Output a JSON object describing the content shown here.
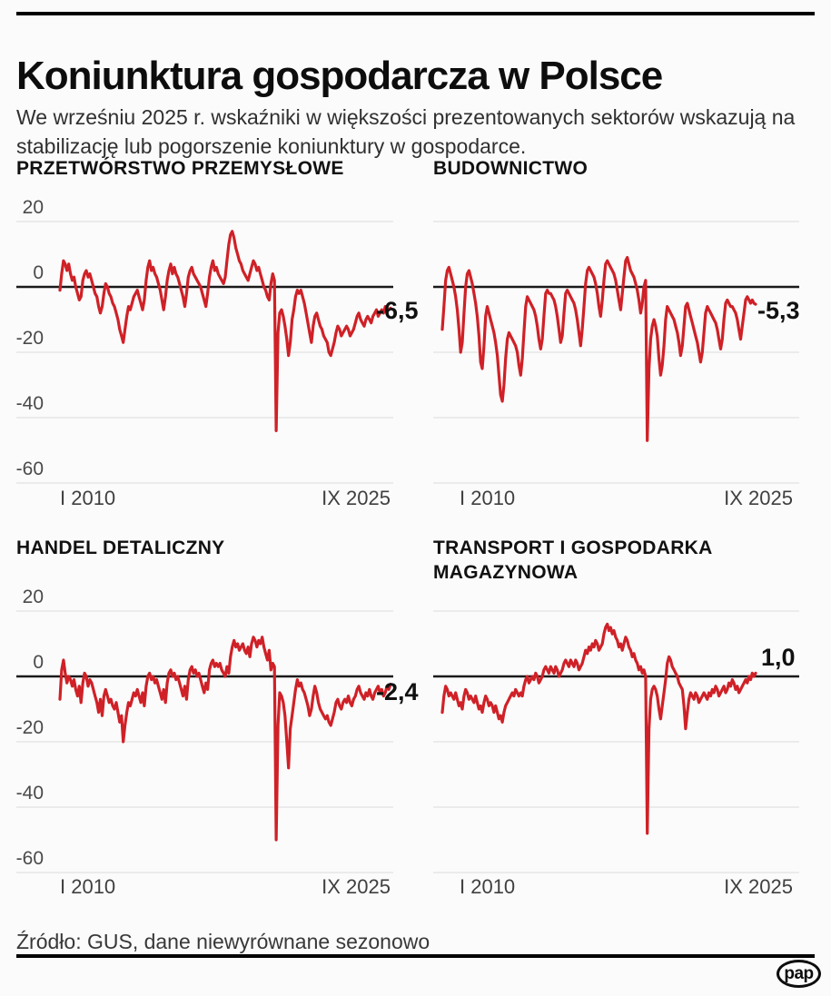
{
  "header": {
    "title": "Koniunktura gospodarcza w Polsce",
    "subtitle": "We wrześniu 2025 r. wskaźniki w większości prezentowanych sektorów wskazują na stabilizację lub pogorszenie koniunktury w gospodarce."
  },
  "footer": {
    "source": "Źródło: GUS, dane niewyrównane sezonowo",
    "logo_text": "pap"
  },
  "colors": {
    "line": "#cf2127",
    "zero_line": "#1a1a1a",
    "grid": "#e6e6e6",
    "background": "#fbfbfb",
    "axis_text": "#4a4a4a"
  },
  "chart_data": [
    {
      "type": "line",
      "title": "PRZETWÓRSTWO PRZEMYSŁOWE",
      "value_label": "-6,5",
      "last_value": -6.5,
      "x_start": "I 2010",
      "x_end": "IX 2025",
      "period": "monthly",
      "y_ticks": [
        20,
        0,
        -20,
        -40,
        -60
      ],
      "ylim": [
        -65,
        25
      ],
      "grid": true,
      "values": [
        -1,
        4,
        8,
        7,
        5,
        7,
        4,
        2,
        3,
        0,
        -2,
        -4,
        -3,
        2,
        4,
        5,
        3,
        4,
        2,
        0,
        -2,
        -3,
        -6,
        -8,
        -6,
        -2,
        1,
        0,
        -2,
        -3,
        -5,
        -6,
        -8,
        -10,
        -13,
        -15,
        -17,
        -13,
        -9,
        -6,
        -7,
        -5,
        -3,
        -2,
        -1,
        -3,
        -5,
        -7,
        -4,
        2,
        6,
        8,
        5,
        6,
        4,
        3,
        1,
        -1,
        -4,
        -7,
        -3,
        2,
        5,
        7,
        4,
        6,
        4,
        3,
        1,
        -1,
        -3,
        -6,
        -2,
        3,
        5,
        6,
        4,
        3,
        2,
        1,
        0,
        -2,
        -4,
        -6,
        -2,
        3,
        6,
        8,
        5,
        6,
        4,
        3,
        2,
        1,
        3,
        8,
        13,
        16,
        17,
        15,
        12,
        10,
        8,
        7,
        5,
        4,
        3,
        2,
        4,
        6,
        8,
        7,
        5,
        6,
        4,
        2,
        0,
        -1,
        -3,
        -4,
        1,
        4,
        2,
        -44,
        -14,
        -8,
        -7,
        -9,
        -12,
        -16,
        -21,
        -17,
        -10,
        -7,
        -3,
        -1,
        -2,
        -1,
        -3,
        -5,
        -8,
        -11,
        -14,
        -17,
        -12,
        -9,
        -8,
        -10,
        -12,
        -13,
        -15,
        -16,
        -17,
        -20,
        -21,
        -19,
        -17,
        -14,
        -12,
        -13,
        -15,
        -14,
        -13,
        -12,
        -13,
        -15,
        -14,
        -13,
        -11,
        -9,
        -8,
        -10,
        -11,
        -12,
        -10,
        -9,
        -10,
        -11,
        -9,
        -8,
        -7,
        -9,
        -8,
        -7,
        -8,
        -6,
        -7,
        -7,
        -6.5
      ]
    },
    {
      "type": "line",
      "title": "BUDOWNICTWO",
      "value_label": "-5,3",
      "last_value": -5.3,
      "x_start": "I 2010",
      "x_end": "IX 2025",
      "period": "monthly",
      "y_ticks": [
        20,
        0,
        -20,
        -40,
        -60
      ],
      "ylim": [
        -65,
        25
      ],
      "grid": true,
      "values": [
        -13,
        -6,
        2,
        5,
        6,
        4,
        2,
        0,
        -3,
        -7,
        -13,
        -20,
        -17,
        -8,
        0,
        4,
        5,
        3,
        1,
        -2,
        -5,
        -9,
        -15,
        -23,
        -25,
        -18,
        -9,
        -6,
        -8,
        -10,
        -12,
        -14,
        -17,
        -21,
        -27,
        -33,
        -35,
        -30,
        -22,
        -16,
        -14,
        -15,
        -16,
        -17,
        -18,
        -20,
        -24,
        -27,
        -22,
        -14,
        -6,
        -3,
        -4,
        -5,
        -6,
        -7,
        -9,
        -12,
        -16,
        -19,
        -16,
        -9,
        -2,
        -1,
        -2,
        -2,
        -3,
        -4,
        -6,
        -9,
        -13,
        -17,
        -15,
        -8,
        -2,
        -1,
        -2,
        -3,
        -4,
        -5,
        -7,
        -10,
        -14,
        -18,
        -13,
        -6,
        1,
        5,
        6,
        5,
        4,
        3,
        1,
        -2,
        -6,
        -9,
        -4,
        2,
        7,
        8,
        7,
        6,
        5,
        4,
        2,
        -1,
        -4,
        -7,
        -2,
        3,
        8,
        9,
        7,
        5,
        4,
        3,
        1,
        -1,
        -4,
        -8,
        -5,
        0,
        2,
        -47,
        -25,
        -16,
        -12,
        -10,
        -12,
        -15,
        -22,
        -27,
        -24,
        -18,
        -10,
        -6,
        -7,
        -8,
        -9,
        -10,
        -12,
        -14,
        -17,
        -21,
        -18,
        -12,
        -6,
        -5,
        -7,
        -9,
        -11,
        -13,
        -15,
        -17,
        -20,
        -23,
        -20,
        -14,
        -8,
        -6,
        -7,
        -8,
        -9,
        -10,
        -11,
        -13,
        -16,
        -19,
        -16,
        -10,
        -5,
        -4,
        -5,
        -6,
        -6,
        -7,
        -8,
        -10,
        -13,
        -16,
        -12,
        -8,
        -4,
        -3,
        -4,
        -5,
        -4,
        -5,
        -5.3
      ]
    },
    {
      "type": "line",
      "title": "HANDEL DETALICZNY",
      "value_label": "-2,4",
      "last_value": -2.4,
      "x_start": "I 2010",
      "x_end": "IX 2025",
      "period": "monthly",
      "y_ticks": [
        20,
        0,
        -20,
        -40,
        -60
      ],
      "ylim": [
        -65,
        25
      ],
      "grid": true,
      "values": [
        -7,
        2,
        5,
        1,
        -2,
        0,
        -1,
        -3,
        -1,
        -4,
        -6,
        -3,
        -8,
        -2,
        1,
        0,
        -3,
        -1,
        -2,
        -4,
        -6,
        -8,
        -11,
        -7,
        -12,
        -6,
        -4,
        -6,
        -8,
        -7,
        -9,
        -10,
        -8,
        -11,
        -14,
        -12,
        -20,
        -15,
        -11,
        -8,
        -9,
        -7,
        -5,
        -6,
        -4,
        -6,
        -8,
        -5,
        -9,
        -3,
        0,
        1,
        -1,
        0,
        -2,
        -1,
        -3,
        -5,
        -7,
        -4,
        -8,
        -2,
        1,
        2,
        0,
        1,
        -1,
        0,
        -2,
        -4,
        -6,
        -3,
        -7,
        -1,
        2,
        3,
        1,
        2,
        0,
        1,
        -1,
        -3,
        -5,
        -2,
        -4,
        2,
        4,
        5,
        3,
        4,
        3,
        4,
        2,
        1,
        0,
        3,
        1,
        6,
        9,
        11,
        9,
        10,
        8,
        9,
        10,
        8,
        7,
        9,
        6,
        10,
        12,
        11,
        9,
        11,
        10,
        12,
        9,
        7,
        5,
        8,
        2,
        4,
        3,
        -50,
        -15,
        -5,
        -6,
        -8,
        -12,
        -20,
        -28,
        -16,
        -12,
        -8,
        -4,
        -1,
        -3,
        -2,
        -4,
        -5,
        -7,
        -9,
        -12,
        -10,
        -6,
        -3,
        -5,
        -8,
        -10,
        -11,
        -12,
        -13,
        -12,
        -14,
        -15,
        -13,
        -11,
        -8,
        -7,
        -9,
        -10,
        -8,
        -7,
        -8,
        -6,
        -8,
        -9,
        -7,
        -6,
        -4,
        -3,
        -5,
        -6,
        -7,
        -5,
        -6,
        -4,
        -6,
        -7,
        -5,
        -4,
        -3,
        -5,
        -4,
        -6,
        -5,
        -3,
        -4,
        -2.4
      ]
    },
    {
      "type": "line",
      "title": "TRANSPORT I GOSPODARKA MAGAZYNOWA",
      "value_label": "1,0",
      "last_value": 1.0,
      "x_start": "I 2010",
      "x_end": "IX 2025",
      "period": "monthly",
      "y_ticks": [
        20,
        0,
        -20,
        -40,
        -60
      ],
      "ylim": [
        -65,
        25
      ],
      "grid": true,
      "values": [
        -11,
        -6,
        -3,
        -4,
        -6,
        -5,
        -6,
        -7,
        -5,
        -7,
        -9,
        -8,
        -10,
        -6,
        -4,
        -5,
        -7,
        -6,
        -7,
        -8,
        -6,
        -8,
        -10,
        -9,
        -11,
        -8,
        -6,
        -7,
        -9,
        -8,
        -9,
        -11,
        -9,
        -11,
        -13,
        -12,
        -14,
        -11,
        -9,
        -8,
        -7,
        -6,
        -5,
        -6,
        -4,
        -5,
        -6,
        -5,
        -6,
        -3,
        -1,
        0,
        -2,
        -1,
        0,
        -1,
        1,
        0,
        -2,
        -1,
        0,
        2,
        3,
        2,
        1,
        3,
        2,
        1,
        3,
        2,
        0,
        1,
        2,
        4,
        5,
        4,
        3,
        5,
        4,
        3,
        5,
        4,
        2,
        3,
        4,
        6,
        8,
        7,
        9,
        8,
        10,
        9,
        11,
        10,
        8,
        9,
        10,
        13,
        15,
        16,
        14,
        15,
        13,
        14,
        12,
        11,
        9,
        10,
        8,
        10,
        12,
        11,
        9,
        8,
        6,
        7,
        5,
        4,
        2,
        3,
        1,
        2,
        0,
        -48,
        -16,
        -7,
        -4,
        -3,
        -4,
        -6,
        -10,
        -13,
        -9,
        -5,
        -1,
        4,
        6,
        5,
        3,
        2,
        1,
        0,
        -2,
        -3,
        -4,
        -9,
        -16,
        -11,
        -7,
        -5,
        -6,
        -7,
        -5,
        -6,
        -8,
        -7,
        -6,
        -5,
        -6,
        -7,
        -5,
        -6,
        -4,
        -5,
        -3,
        -4,
        -6,
        -5,
        -4,
        -3,
        -5,
        -4,
        -2,
        -3,
        -1,
        -2,
        -4,
        -3,
        -5,
        -4,
        -3,
        -2,
        -1,
        -2,
        0,
        -1,
        1,
        0,
        1.0
      ]
    }
  ]
}
